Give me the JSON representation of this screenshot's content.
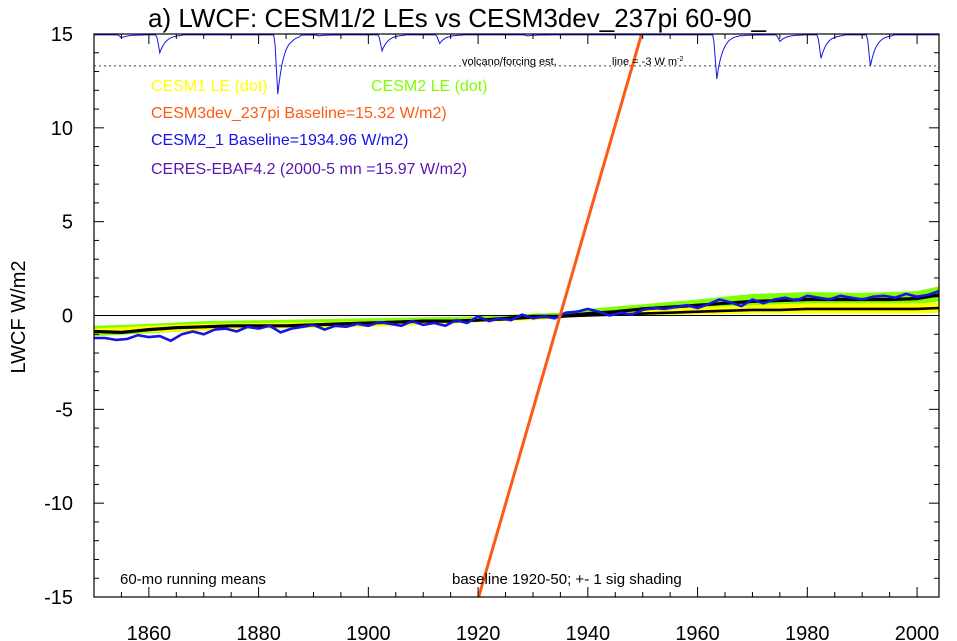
{
  "chart_data": {
    "type": "line",
    "title": "a) LWCF: CESM1/2 LEs vs CESM3dev_237pi 60-90_",
    "xlabel": "",
    "ylabel": "LWCF W/m2",
    "xlim": [
      1850,
      2004
    ],
    "ylim": [
      -15,
      15
    ],
    "x_ticks": [
      1860,
      1880,
      1900,
      1920,
      1940,
      1960,
      1980,
      2000
    ],
    "y_ticks": [
      15,
      10,
      5,
      0,
      -5,
      -10,
      -15
    ],
    "x_tick_labels": [
      "1860",
      "1880",
      "1900",
      "1920",
      "1940",
      "1960",
      "1980",
      "2000"
    ],
    "y_tick_labels": [
      "15",
      "10",
      "5",
      "0",
      "-5",
      "-10",
      "-15"
    ],
    "zero_line": 0,
    "legend": [
      {
        "text": "CESM1 LE (dot)",
        "color": "#ffff00"
      },
      {
        "text": "CESM2 LE (dot)",
        "color": "#7fff00"
      },
      {
        "text": "CESM3dev_237pi Baseline=15.32 W/m2)",
        "color": "#ff5a14"
      },
      {
        "text": "CESM2_1 Baseline=1934.96 W/m2)",
        "color": "#1414e6"
      },
      {
        "text": "CERES-EBAF4.2 (2000-5 mn =15.97 W/m2)",
        "color": "#5a14b4"
      }
    ],
    "annotations": {
      "volcano_label": "volcano/forcing est.",
      "volcano_line": "line = -3 W m",
      "volcano_line_sup": "-2",
      "running_means": "60-mo running means",
      "baseline_note": "baseline 1920-50; +- 1 sig shading"
    },
    "volcano_reference_y": 13.3,
    "volcano_dips": [
      {
        "x": 1855,
        "min": 14.8
      },
      {
        "x": 1862,
        "min": 14.0
      },
      {
        "x": 1883.5,
        "min": 11.8
      },
      {
        "x": 1886,
        "min": 14.9
      },
      {
        "x": 1891,
        "min": 14.9
      },
      {
        "x": 1902.5,
        "min": 14.1
      },
      {
        "x": 1913,
        "min": 14.5
      },
      {
        "x": 1929,
        "min": 14.9
      },
      {
        "x": 1963.5,
        "min": 12.6
      },
      {
        "x": 1968,
        "min": 14.9
      },
      {
        "x": 1975,
        "min": 14.6
      },
      {
        "x": 1982.5,
        "min": 13.7
      },
      {
        "x": 1991.5,
        "min": 13.3
      }
    ],
    "series": [
      {
        "name": "CESM2 LE",
        "color": "#7fff00",
        "style": "band",
        "x": [
          1850,
          1860,
          1870,
          1880,
          1890,
          1900,
          1910,
          1920,
          1930,
          1935,
          1940,
          1950,
          1960,
          1970,
          1980,
          1990,
          2000,
          2004
        ],
        "upper": [
          -0.55,
          -0.45,
          -0.3,
          -0.25,
          -0.2,
          -0.15,
          -0.1,
          -0.05,
          0.1,
          0.15,
          0.35,
          0.6,
          0.85,
          1.15,
          1.25,
          1.2,
          1.3,
          1.55
        ],
        "lower": [
          -1.1,
          -0.95,
          -0.8,
          -0.7,
          -0.65,
          -0.6,
          -0.5,
          -0.35,
          -0.2,
          -0.15,
          0.0,
          0.15,
          0.3,
          0.45,
          0.55,
          0.6,
          0.6,
          0.75
        ]
      },
      {
        "name": "CESM1 LE",
        "color": "#ffff00",
        "style": "band",
        "x": [
          1850,
          1860,
          1870,
          1880,
          1890,
          1900,
          1910,
          1920,
          1930,
          1935,
          1940,
          1950,
          1960,
          1970,
          1980,
          1990,
          2000,
          2004
        ],
        "upper": [
          -0.7,
          -0.55,
          -0.45,
          -0.4,
          -0.35,
          -0.3,
          -0.25,
          -0.15,
          -0.05,
          0.05,
          0.15,
          0.3,
          0.45,
          0.55,
          0.65,
          0.65,
          0.65,
          0.7
        ],
        "lower": [
          -1.0,
          -0.9,
          -0.8,
          -0.7,
          -0.65,
          -0.6,
          -0.5,
          -0.35,
          -0.25,
          -0.15,
          -0.05,
          0.0,
          0.05,
          0.1,
          0.1,
          0.1,
          0.1,
          0.15
        ]
      },
      {
        "name": "CESM2 LE mean",
        "color": "#000000",
        "style": "line",
        "x": [
          1850,
          1855,
          1860,
          1865,
          1870,
          1875,
          1880,
          1885,
          1890,
          1895,
          1900,
          1905,
          1910,
          1915,
          1920,
          1925,
          1930,
          1935,
          1940,
          1945,
          1950,
          1955,
          1960,
          1965,
          1970,
          1975,
          1980,
          1985,
          1990,
          1995,
          2000,
          2004
        ],
        "y": [
          -0.85,
          -0.9,
          -0.75,
          -0.65,
          -0.6,
          -0.55,
          -0.55,
          -0.55,
          -0.5,
          -0.45,
          -0.4,
          -0.35,
          -0.3,
          -0.3,
          -0.25,
          -0.15,
          -0.05,
          -0.05,
          0.1,
          0.2,
          0.35,
          0.45,
          0.55,
          0.65,
          0.75,
          0.8,
          0.85,
          0.85,
          0.85,
          0.85,
          0.9,
          1.1
        ]
      },
      {
        "name": "CESM1 LE mean",
        "color": "#000000",
        "style": "line",
        "x": [
          1920,
          1925,
          1930,
          1935,
          1940,
          1945,
          1950,
          1955,
          1960,
          1965,
          1970,
          1975,
          1980,
          1985,
          1990,
          1995,
          2000,
          2004
        ],
        "y": [
          -0.25,
          -0.2,
          -0.1,
          -0.05,
          0.0,
          0.05,
          0.1,
          0.15,
          0.2,
          0.25,
          0.3,
          0.3,
          0.35,
          0.35,
          0.35,
          0.35,
          0.35,
          0.4
        ]
      },
      {
        "name": "CESM2_1",
        "color": "#1414e6",
        "style": "line",
        "x": [
          1850,
          1852,
          1854,
          1856,
          1858,
          1860,
          1862,
          1864,
          1866,
          1868,
          1870,
          1872,
          1874,
          1876,
          1878,
          1880,
          1882,
          1884,
          1886,
          1888,
          1890,
          1892,
          1894,
          1896,
          1898,
          1900,
          1902,
          1904,
          1906,
          1908,
          1910,
          1912,
          1914,
          1916,
          1918,
          1920,
          1922,
          1924,
          1926,
          1928,
          1930,
          1932,
          1934,
          1936,
          1938,
          1940,
          1942,
          1944,
          1946,
          1948,
          1950,
          1952,
          1954,
          1956,
          1958,
          1960,
          1962,
          1964,
          1966,
          1968,
          1970,
          1972,
          1974,
          1976,
          1978,
          1980,
          1982,
          1984,
          1986,
          1988,
          1990,
          1992,
          1994,
          1996,
          1998,
          2000,
          2002,
          2004
        ],
        "y": [
          -1.2,
          -1.2,
          -1.3,
          -1.25,
          -1.05,
          -1.15,
          -1.1,
          -1.35,
          -1.0,
          -0.85,
          -1.0,
          -0.75,
          -0.7,
          -0.85,
          -0.6,
          -0.7,
          -0.55,
          -0.9,
          -0.7,
          -0.6,
          -0.5,
          -0.75,
          -0.55,
          -0.6,
          -0.45,
          -0.55,
          -0.35,
          -0.45,
          -0.55,
          -0.3,
          -0.5,
          -0.4,
          -0.55,
          -0.25,
          -0.4,
          -0.05,
          -0.3,
          -0.15,
          -0.25,
          0.05,
          -0.15,
          -0.05,
          -0.15,
          0.15,
          0.2,
          0.35,
          0.2,
          0.0,
          0.15,
          0.05,
          0.3,
          0.4,
          0.35,
          0.45,
          0.55,
          0.4,
          0.6,
          0.85,
          0.7,
          0.5,
          0.85,
          0.65,
          0.85,
          0.95,
          0.8,
          1.05,
          0.95,
          0.85,
          1.05,
          0.95,
          0.85,
          1.0,
          1.05,
          0.95,
          1.15,
          1.0,
          1.1,
          1.3
        ]
      },
      {
        "name": "CESM3dev_237pi",
        "color": "#ff5a14",
        "style": "line",
        "x": [
          1920,
          1950
        ],
        "y": [
          -15.1,
          15.2
        ]
      }
    ]
  }
}
